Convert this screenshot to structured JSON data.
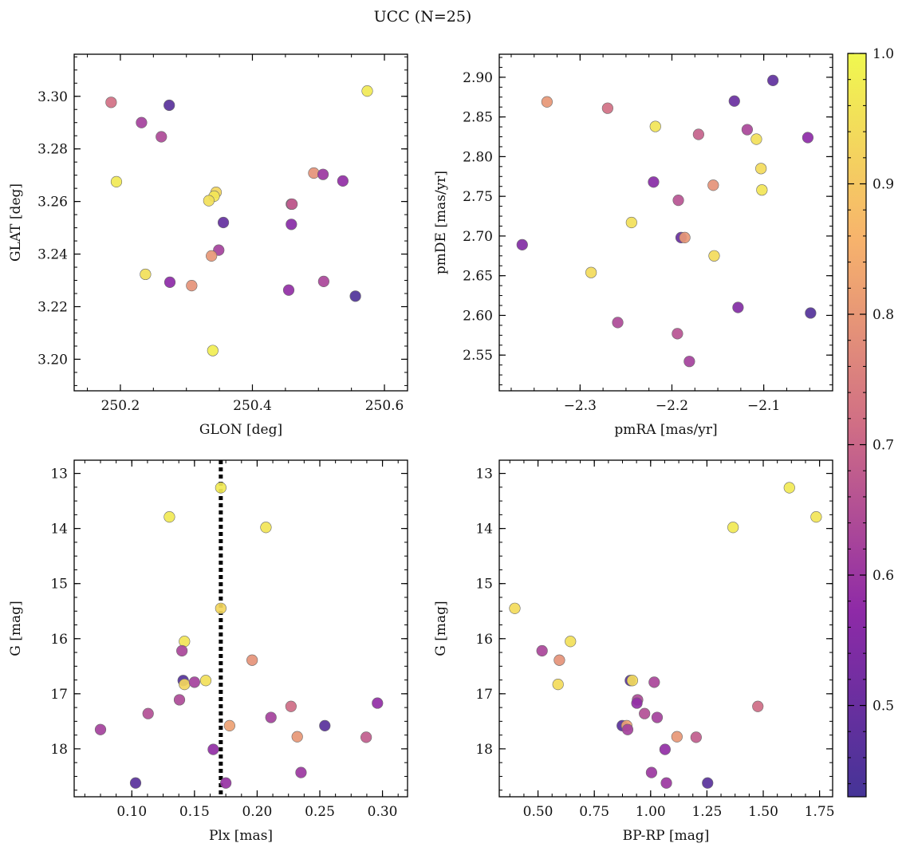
{
  "figure": {
    "title": "UCC (N=25)"
  },
  "colorbar": {
    "ticks": [
      "1.0",
      "0.9",
      "0.8",
      "0.7",
      "0.6",
      "0.5"
    ],
    "tick_values": [
      1.0,
      0.9,
      0.8,
      0.7,
      0.6,
      0.5
    ],
    "range": [
      0.43,
      1.0
    ],
    "colormap": "plasma"
  },
  "chart_data": [
    {
      "id": "glon-glat",
      "type": "scatter",
      "xlabel": "GLON [deg]",
      "ylabel": "GLAT [deg]",
      "xlim": [
        250.13,
        250.635
      ],
      "ylim": [
        3.188,
        3.316
      ],
      "y_inverted": false,
      "xticks": [
        250.2,
        250.4,
        250.6
      ],
      "xtick_labels": [
        "250.2",
        "250.4",
        "250.6"
      ],
      "yticks": [
        3.2,
        3.22,
        3.24,
        3.26,
        3.28,
        3.3
      ],
      "ytick_labels": [
        "3.20",
        "3.22",
        "3.24",
        "3.26",
        "3.28",
        "3.30"
      ],
      "points": [
        {
          "x": 250.186,
          "y": 3.2977,
          "c": 0.72
        },
        {
          "x": 250.232,
          "y": 3.29,
          "c": 0.62
        },
        {
          "x": 250.262,
          "y": 3.2846,
          "c": 0.64
        },
        {
          "x": 250.274,
          "y": 3.2966,
          "c": 0.47
        },
        {
          "x": 250.194,
          "y": 3.2675,
          "c": 0.97
        },
        {
          "x": 250.574,
          "y": 3.302,
          "c": 0.97
        },
        {
          "x": 250.345,
          "y": 3.2635,
          "c": 0.93
        },
        {
          "x": 250.342,
          "y": 3.262,
          "c": 0.96
        },
        {
          "x": 250.334,
          "y": 3.2603,
          "c": 0.95
        },
        {
          "x": 250.356,
          "y": 3.252,
          "c": 0.49
        },
        {
          "x": 250.349,
          "y": 3.2415,
          "c": 0.62
        },
        {
          "x": 250.338,
          "y": 3.2393,
          "c": 0.8
        },
        {
          "x": 250.238,
          "y": 3.2323,
          "c": 0.95
        },
        {
          "x": 250.275,
          "y": 3.2293,
          "c": 0.57
        },
        {
          "x": 250.308,
          "y": 3.228,
          "c": 0.79
        },
        {
          "x": 250.34,
          "y": 3.2033,
          "c": 0.98
        },
        {
          "x": 250.493,
          "y": 3.2708,
          "c": 0.79
        },
        {
          "x": 250.507,
          "y": 3.2703,
          "c": 0.6
        },
        {
          "x": 250.537,
          "y": 3.2678,
          "c": 0.58
        },
        {
          "x": 250.459,
          "y": 3.259,
          "c": 0.64
        },
        {
          "x": 250.46,
          "y": 3.259,
          "c": 0.68
        },
        {
          "x": 250.459,
          "y": 3.2513,
          "c": 0.56
        },
        {
          "x": 250.455,
          "y": 3.2263,
          "c": 0.58
        },
        {
          "x": 250.508,
          "y": 3.2296,
          "c": 0.63
        },
        {
          "x": 250.556,
          "y": 3.224,
          "c": 0.45
        }
      ]
    },
    {
      "id": "pmra-pmde",
      "type": "scatter",
      "xlabel": "pmRA [mas/yr]",
      "ylabel": "pmDE [mas/yr]",
      "xlim": [
        -2.388,
        -2.025
      ],
      "ylim": [
        2.505,
        2.929
      ],
      "y_inverted": false,
      "xticks": [
        -2.3,
        -2.2,
        -2.1
      ],
      "xtick_labels": [
        "−2.3",
        "−2.2",
        "−2.1"
      ],
      "yticks": [
        2.55,
        2.6,
        2.65,
        2.7,
        2.75,
        2.8,
        2.85,
        2.9
      ],
      "ytick_labels": [
        "2.55",
        "2.60",
        "2.65",
        "2.70",
        "2.75",
        "2.80",
        "2.85",
        "2.90"
      ],
      "points": [
        {
          "x": -2.336,
          "y": 2.869,
          "c": 0.8
        },
        {
          "x": -2.27,
          "y": 2.861,
          "c": 0.72
        },
        {
          "x": -2.218,
          "y": 2.838,
          "c": 0.96
        },
        {
          "x": -2.171,
          "y": 2.828,
          "c": 0.69
        },
        {
          "x": -2.132,
          "y": 2.87,
          "c": 0.5
        },
        {
          "x": -2.118,
          "y": 2.834,
          "c": 0.63
        },
        {
          "x": -2.108,
          "y": 2.822,
          "c": 0.95
        },
        {
          "x": -2.09,
          "y": 2.896,
          "c": 0.48
        },
        {
          "x": -2.052,
          "y": 2.824,
          "c": 0.57
        },
        {
          "x": -2.103,
          "y": 2.785,
          "c": 0.94
        },
        {
          "x": -2.102,
          "y": 2.758,
          "c": 0.96
        },
        {
          "x": -2.155,
          "y": 2.764,
          "c": 0.79
        },
        {
          "x": -2.22,
          "y": 2.768,
          "c": 0.56
        },
        {
          "x": -2.193,
          "y": 2.745,
          "c": 0.66
        },
        {
          "x": -2.244,
          "y": 2.717,
          "c": 0.95
        },
        {
          "x": -2.19,
          "y": 2.698,
          "c": 0.5
        },
        {
          "x": -2.186,
          "y": 2.698,
          "c": 0.8
        },
        {
          "x": -2.363,
          "y": 2.689,
          "c": 0.55
        },
        {
          "x": -2.154,
          "y": 2.675,
          "c": 0.94
        },
        {
          "x": -2.288,
          "y": 2.654,
          "c": 0.94
        },
        {
          "x": -2.128,
          "y": 2.61,
          "c": 0.55
        },
        {
          "x": -2.049,
          "y": 2.603,
          "c": 0.46
        },
        {
          "x": -2.259,
          "y": 2.591,
          "c": 0.64
        },
        {
          "x": -2.194,
          "y": 2.577,
          "c": 0.66
        },
        {
          "x": -2.181,
          "y": 2.542,
          "c": 0.62
        }
      ]
    },
    {
      "id": "plx-g",
      "type": "scatter",
      "xlabel": "Plx [mas]",
      "ylabel": "G [mag]",
      "xlim": [
        0.054,
        0.32
      ],
      "ylim": [
        12.76,
        18.87
      ],
      "y_inverted": true,
      "vline": 0.171,
      "xticks": [
        0.1,
        0.15,
        0.2,
        0.25,
        0.3
      ],
      "xtick_labels": [
        "0.10",
        "0.15",
        "0.20",
        "0.25",
        "0.30"
      ],
      "yticks": [
        13,
        14,
        15,
        16,
        17,
        18
      ],
      "ytick_labels": [
        "13",
        "14",
        "15",
        "16",
        "17",
        "18"
      ],
      "points": [
        {
          "x": 0.171,
          "y": 13.26,
          "c": 0.97
        },
        {
          "x": 0.13,
          "y": 13.79,
          "c": 0.97
        },
        {
          "x": 0.207,
          "y": 13.98,
          "c": 0.96
        },
        {
          "x": 0.171,
          "y": 15.45,
          "c": 0.93
        },
        {
          "x": 0.142,
          "y": 16.05,
          "c": 0.96
        },
        {
          "x": 0.14,
          "y": 16.22,
          "c": 0.63
        },
        {
          "x": 0.196,
          "y": 16.39,
          "c": 0.79
        },
        {
          "x": 0.141,
          "y": 16.76,
          "c": 0.46
        },
        {
          "x": 0.142,
          "y": 16.83,
          "c": 0.93
        },
        {
          "x": 0.15,
          "y": 16.79,
          "c": 0.62
        },
        {
          "x": 0.159,
          "y": 16.76,
          "c": 0.95
        },
        {
          "x": 0.138,
          "y": 17.11,
          "c": 0.64
        },
        {
          "x": 0.227,
          "y": 17.23,
          "c": 0.71
        },
        {
          "x": 0.296,
          "y": 17.17,
          "c": 0.58
        },
        {
          "x": 0.113,
          "y": 17.36,
          "c": 0.65
        },
        {
          "x": 0.211,
          "y": 17.43,
          "c": 0.62
        },
        {
          "x": 0.075,
          "y": 17.65,
          "c": 0.62
        },
        {
          "x": 0.178,
          "y": 17.58,
          "c": 0.82
        },
        {
          "x": 0.254,
          "y": 17.58,
          "c": 0.47
        },
        {
          "x": 0.232,
          "y": 17.78,
          "c": 0.8
        },
        {
          "x": 0.287,
          "y": 17.79,
          "c": 0.68
        },
        {
          "x": 0.165,
          "y": 18.01,
          "c": 0.58
        },
        {
          "x": 0.235,
          "y": 18.43,
          "c": 0.6
        },
        {
          "x": 0.103,
          "y": 18.62,
          "c": 0.47
        },
        {
          "x": 0.175,
          "y": 18.62,
          "c": 0.59
        }
      ]
    },
    {
      "id": "bprp-g",
      "type": "scatter",
      "xlabel": "BP-RP [mag]",
      "ylabel": "G [mag]",
      "xlim": [
        0.328,
        1.808
      ],
      "ylim": [
        12.76,
        18.87
      ],
      "y_inverted": true,
      "xticks": [
        0.5,
        0.75,
        1.0,
        1.25,
        1.5,
        1.75
      ],
      "xtick_labels": [
        "0.50",
        "0.75",
        "1.00",
        "1.25",
        "1.50",
        "1.75"
      ],
      "yticks": [
        13,
        14,
        15,
        16,
        17,
        18
      ],
      "ytick_labels": [
        "13",
        "14",
        "15",
        "16",
        "17",
        "18"
      ],
      "points": [
        {
          "x": 1.616,
          "y": 13.26,
          "c": 0.97
        },
        {
          "x": 1.735,
          "y": 13.79,
          "c": 0.96
        },
        {
          "x": 1.366,
          "y": 13.98,
          "c": 0.97
        },
        {
          "x": 0.397,
          "y": 15.45,
          "c": 0.94
        },
        {
          "x": 0.644,
          "y": 16.05,
          "c": 0.95
        },
        {
          "x": 0.518,
          "y": 16.22,
          "c": 0.63
        },
        {
          "x": 0.595,
          "y": 16.39,
          "c": 0.79
        },
        {
          "x": 0.91,
          "y": 16.76,
          "c": 0.47
        },
        {
          "x": 0.919,
          "y": 16.76,
          "c": 0.94
        },
        {
          "x": 0.589,
          "y": 16.83,
          "c": 0.94
        },
        {
          "x": 1.016,
          "y": 16.79,
          "c": 0.63
        },
        {
          "x": 0.942,
          "y": 17.11,
          "c": 0.64
        },
        {
          "x": 0.939,
          "y": 17.17,
          "c": 0.58
        },
        {
          "x": 1.476,
          "y": 17.23,
          "c": 0.71
        },
        {
          "x": 0.973,
          "y": 17.36,
          "c": 0.65
        },
        {
          "x": 1.029,
          "y": 17.43,
          "c": 0.62
        },
        {
          "x": 0.874,
          "y": 17.58,
          "c": 0.47
        },
        {
          "x": 0.894,
          "y": 17.58,
          "c": 0.82
        },
        {
          "x": 0.898,
          "y": 17.65,
          "c": 0.62
        },
        {
          "x": 1.117,
          "y": 17.78,
          "c": 0.8
        },
        {
          "x": 1.202,
          "y": 17.79,
          "c": 0.68
        },
        {
          "x": 1.064,
          "y": 18.01,
          "c": 0.58
        },
        {
          "x": 1.004,
          "y": 18.43,
          "c": 0.6
        },
        {
          "x": 1.07,
          "y": 18.62,
          "c": 0.6
        },
        {
          "x": 1.253,
          "y": 18.62,
          "c": 0.47
        }
      ]
    }
  ]
}
